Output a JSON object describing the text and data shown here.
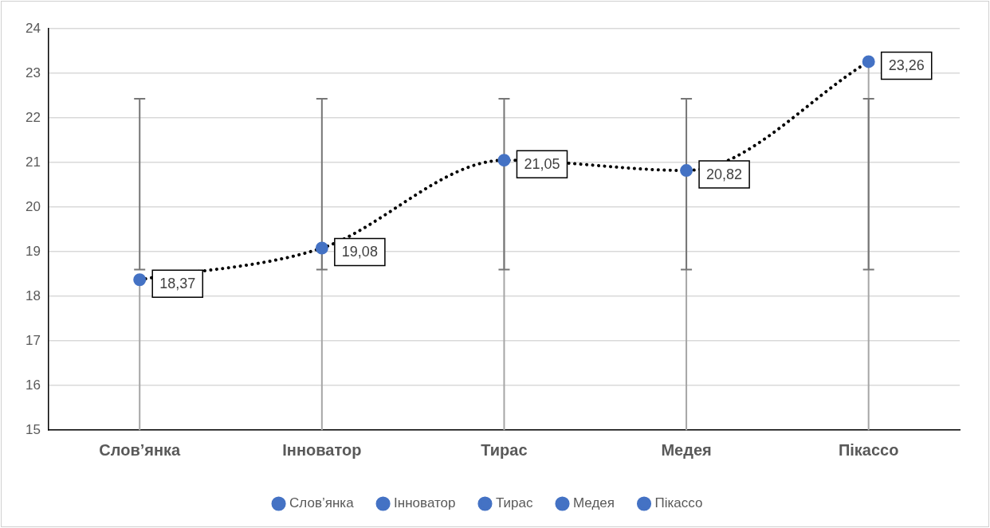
{
  "chart_data": {
    "type": "line",
    "categories": [
      "Слов’янка",
      "Інноватор",
      "Тирас",
      "Медея",
      "Пікассо"
    ],
    "ylim": [
      15,
      24
    ],
    "yticks": [
      15,
      16,
      17,
      18,
      19,
      20,
      21,
      22,
      23,
      24
    ],
    "grid": "y",
    "legend": "bottom",
    "series": [
      {
        "type": "line",
        "color": "#000000",
        "marker": "none",
        "line_style": "dotted",
        "values": [
          18.37,
          19.08,
          21.05,
          20.82,
          23.26
        ],
        "errors": [
          [
            15,
            18.37
          ],
          [
            15,
            19.08
          ],
          [
            15,
            21.05
          ],
          [
            15,
            20.82
          ],
          [
            15,
            23.26
          ]
        ]
      },
      {
        "name": "Слов’янка",
        "color": "#4472c4",
        "marker": "circle",
        "line_style": "dotted",
        "values": [
          18.37,
          null,
          null,
          null,
          null
        ],
        "value_labels": [
          "18,37",
          null,
          null,
          null,
          null
        ],
        "errors": [
          [
            18.6,
            22.43
          ],
          null,
          null,
          null,
          null
        ]
      },
      {
        "name": "Інноватор",
        "color": "#4472c4",
        "marker": "circle",
        "line_style": "dotted",
        "values": [
          null,
          19.08,
          null,
          null,
          null
        ],
        "value_labels": [
          null,
          "19,08",
          null,
          null,
          null
        ],
        "errors": [
          null,
          [
            18.6,
            22.43
          ],
          null,
          null,
          null
        ]
      },
      {
        "name": "Тирас",
        "color": "#4472c4",
        "marker": "circle",
        "line_style": "dotted",
        "values": [
          null,
          null,
          21.05,
          null,
          null
        ],
        "value_labels": [
          null,
          null,
          "21,05",
          null,
          null
        ],
        "errors": [
          null,
          null,
          [
            18.6,
            22.43
          ],
          null,
          null
        ]
      },
      {
        "name": "Медея",
        "color": "#4472c4",
        "marker": "circle",
        "line_style": "dotted",
        "values": [
          null,
          null,
          null,
          20.82,
          null
        ],
        "value_labels": [
          null,
          null,
          null,
          "20,82",
          null
        ],
        "errors": [
          null,
          null,
          null,
          [
            18.6,
            22.43
          ],
          null
        ]
      },
      {
        "name": "Пікассо",
        "color": "#4472c4",
        "marker": "circle",
        "line_style": "dotted",
        "values": [
          null,
          null,
          null,
          null,
          23.26
        ],
        "value_labels": [
          null,
          null,
          null,
          null,
          "23,26"
        ],
        "errors": [
          null,
          null,
          null,
          null,
          [
            18.6,
            22.43
          ]
        ]
      }
    ]
  }
}
